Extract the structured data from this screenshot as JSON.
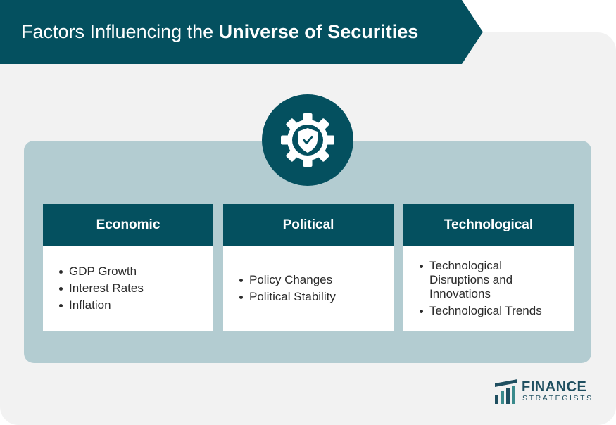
{
  "header": {
    "title_prefix": "Factors Influencing the ",
    "title_bold": "Universe of Securities"
  },
  "hero_icon": "gear-shield-check-icon",
  "factors": [
    {
      "heading": "Economic",
      "items": [
        "GDP Growth",
        "Interest Rates",
        "Inflation"
      ]
    },
    {
      "heading": "Political",
      "items": [
        "Policy Changes",
        "Political Stability"
      ]
    },
    {
      "heading": "Technological",
      "items": [
        "Technological Disruptions and Innovations",
        "Technological Trends"
      ]
    }
  ],
  "logo": {
    "name": "FINANCE",
    "tagline": "STRATEGISTS"
  },
  "colors": {
    "primary": "#04505f",
    "panel": "#b3ccd1",
    "background": "#f2f2f2",
    "text": "#2b2b2b"
  }
}
